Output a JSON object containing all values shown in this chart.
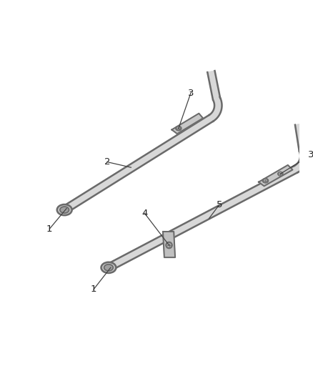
{
  "bg_color": "#ffffff",
  "line_color": "#5a5a5a",
  "figsize": [
    4.38,
    5.33
  ],
  "dpi": 100,
  "tube_lw": 1.8,
  "tube_color": "#6a6a6a",
  "fill_color": "#d8d8d8",
  "bracket_color": "#b0b0b0",
  "label_fontsize": 9.5,
  "label_color": "#333333"
}
